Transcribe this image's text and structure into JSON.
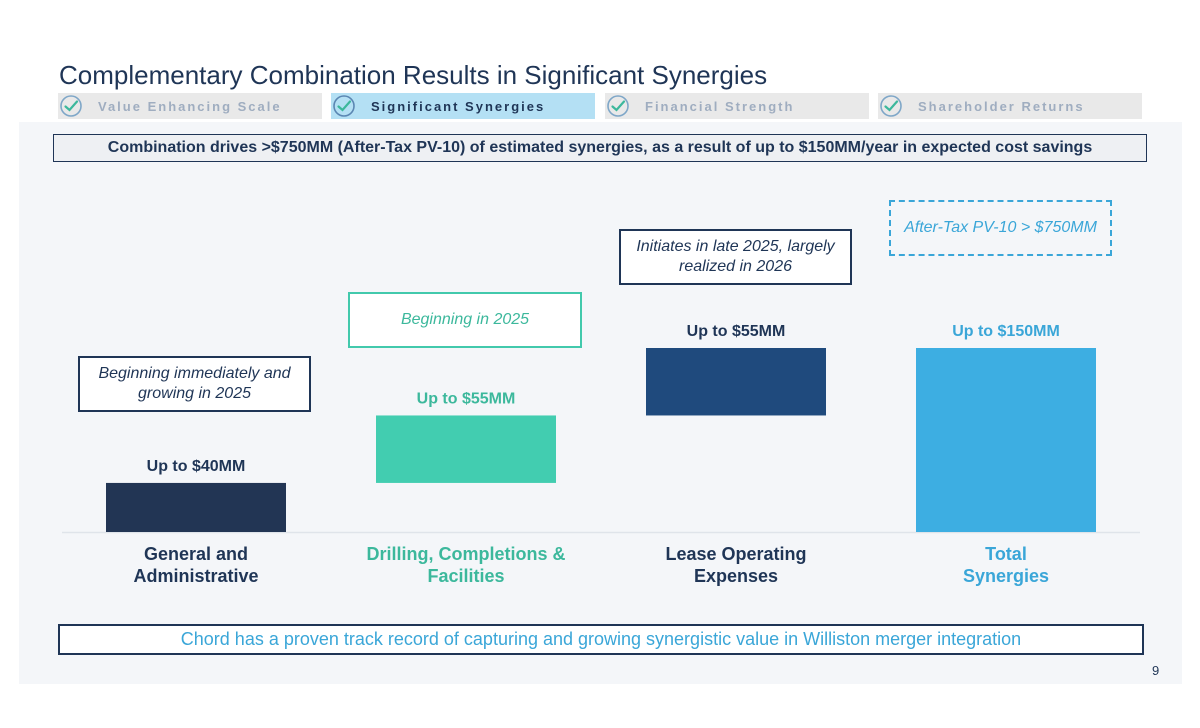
{
  "slide": {
    "title": "Complementary Combination Results in Significant Synergies",
    "page_number": "9"
  },
  "tabs": [
    {
      "label": "Value Enhancing Scale",
      "active": false
    },
    {
      "label": "Significant Synergies",
      "active": true
    },
    {
      "label": "Financial Strength",
      "active": false
    },
    {
      "label": "Shareholder Returns",
      "active": false
    }
  ],
  "headline": "Combination drives >$750MM (After-Tax PV-10) of estimated synergies, as a result of up to $150MM/year in expected cost savings",
  "notes": {
    "ga": "Beginning immediately and growing in 2025",
    "dcf": "Beginning in 2025",
    "loe": "Initiates in late 2025, largely realized in 2026",
    "total": "After-Tax PV-10 > $750MM"
  },
  "footer": "Chord has a proven track record of capturing and growing synergistic value in Williston merger integration",
  "colors": {
    "navy": "#223554",
    "teal": "#42cdb0",
    "blue_dark": "#1f4a7d",
    "blue_light": "#3daee2",
    "text_navy": "#1f3556",
    "text_teal": "#3cb89c",
    "text_blue": "#3aa6d8"
  },
  "chart_data": {
    "type": "bar",
    "subtype": "waterfall",
    "title": "",
    "xlabel": "",
    "ylabel": "",
    "units": "$MM per year",
    "ylim": [
      0,
      150
    ],
    "categories": [
      "General and Administrative",
      "Drilling, Completions & Facilities",
      "Lease Operating Expenses",
      "Total Synergies"
    ],
    "category_lines": [
      [
        "General and",
        "Administrative"
      ],
      [
        "Drilling, Completions &",
        "Facilities"
      ],
      [
        "Lease Operating",
        "Expenses"
      ],
      [
        "Total",
        "Synergies"
      ]
    ],
    "values": [
      40,
      55,
      55,
      150
    ],
    "bases": [
      0,
      40,
      95,
      0
    ],
    "labels": [
      "Up to $40MM",
      "Up to $55MM",
      "Up to $55MM",
      "Up to $150MM"
    ],
    "bar_colors": [
      "#223554",
      "#42cdb0",
      "#1f4a7d",
      "#3daee2"
    ],
    "label_colors": [
      "#1f3556",
      "#3cb89c",
      "#1f3556",
      "#3aa6d8"
    ]
  }
}
